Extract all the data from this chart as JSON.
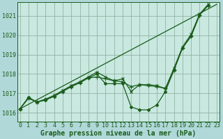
{
  "bg_color": "#b0d8d8",
  "plot_bg_color": "#c8e8e0",
  "line_color": "#1a5c1a",
  "grid_color": "#88aa99",
  "xlabel": "Graphe pression niveau de la mer (hPa)",
  "xlabel_fontsize": 7,
  "tick_fontsize": 6,
  "ytick_labels": [
    1016,
    1017,
    1018,
    1019,
    1020,
    1021
  ],
  "ylim": [
    1015.55,
    1021.7
  ],
  "xlim": [
    -0.3,
    23.3
  ],
  "xtick_labels": [
    0,
    1,
    2,
    3,
    4,
    5,
    6,
    7,
    8,
    9,
    10,
    11,
    12,
    13,
    14,
    15,
    16,
    17,
    18,
    19,
    20,
    21,
    22,
    23
  ],
  "series": [
    {
      "x": [
        0,
        23
      ],
      "y": [
        1016.2,
        1021.6
      ],
      "marker": null,
      "markersize": 0,
      "linewidth": 0.9
    },
    {
      "x": [
        0,
        1,
        2,
        3,
        4,
        5,
        6,
        7,
        8,
        9,
        10,
        11,
        12,
        13,
        14,
        15,
        16,
        17,
        18,
        19,
        20,
        21,
        22,
        23
      ],
      "y": [
        1016.2,
        1016.8,
        1016.55,
        1016.65,
        1016.85,
        1017.1,
        1017.35,
        1017.55,
        1017.8,
        1018.0,
        1017.5,
        1017.5,
        1017.5,
        1016.3,
        1016.15,
        1016.15,
        1016.4,
        1017.1,
        1018.2,
        1019.35,
        1019.95,
        1021.05,
        1021.55,
        null
      ],
      "marker": "D",
      "markersize": 2.2,
      "linewidth": 0.9
    },
    {
      "x": [
        0,
        1,
        2,
        3,
        4,
        5,
        6,
        7,
        8,
        9,
        10,
        11,
        12,
        13,
        14,
        15,
        16,
        17,
        18,
        19,
        20,
        21,
        22,
        23
      ],
      "y": [
        1016.2,
        1016.75,
        1016.55,
        1016.7,
        1016.85,
        1017.1,
        1017.35,
        1017.55,
        1017.8,
        1017.85,
        1017.75,
        1017.65,
        1017.6,
        1017.35,
        1017.45,
        1017.4,
        1017.35,
        1017.25,
        1018.2,
        1019.35,
        1019.95,
        1021.05,
        1021.55,
        null
      ],
      "marker": "+",
      "markersize": 4,
      "linewidth": 0.9
    },
    {
      "x": [
        0,
        1,
        2,
        3,
        4,
        5,
        6,
        7,
        8,
        9,
        10,
        11,
        12,
        13,
        14,
        15,
        16,
        17,
        18,
        19,
        20,
        21,
        22,
        23
      ],
      "y": [
        1016.2,
        1016.75,
        1016.55,
        1016.7,
        1016.9,
        1017.15,
        1017.4,
        1017.6,
        1017.85,
        1018.1,
        1017.85,
        1017.65,
        1017.75,
        1017.1,
        1017.45,
        1017.45,
        1017.4,
        1017.25,
        1018.3,
        1019.4,
        1020.05,
        1021.1,
        1021.6,
        null
      ],
      "marker": "x",
      "markersize": 2.8,
      "linewidth": 0.9
    }
  ]
}
